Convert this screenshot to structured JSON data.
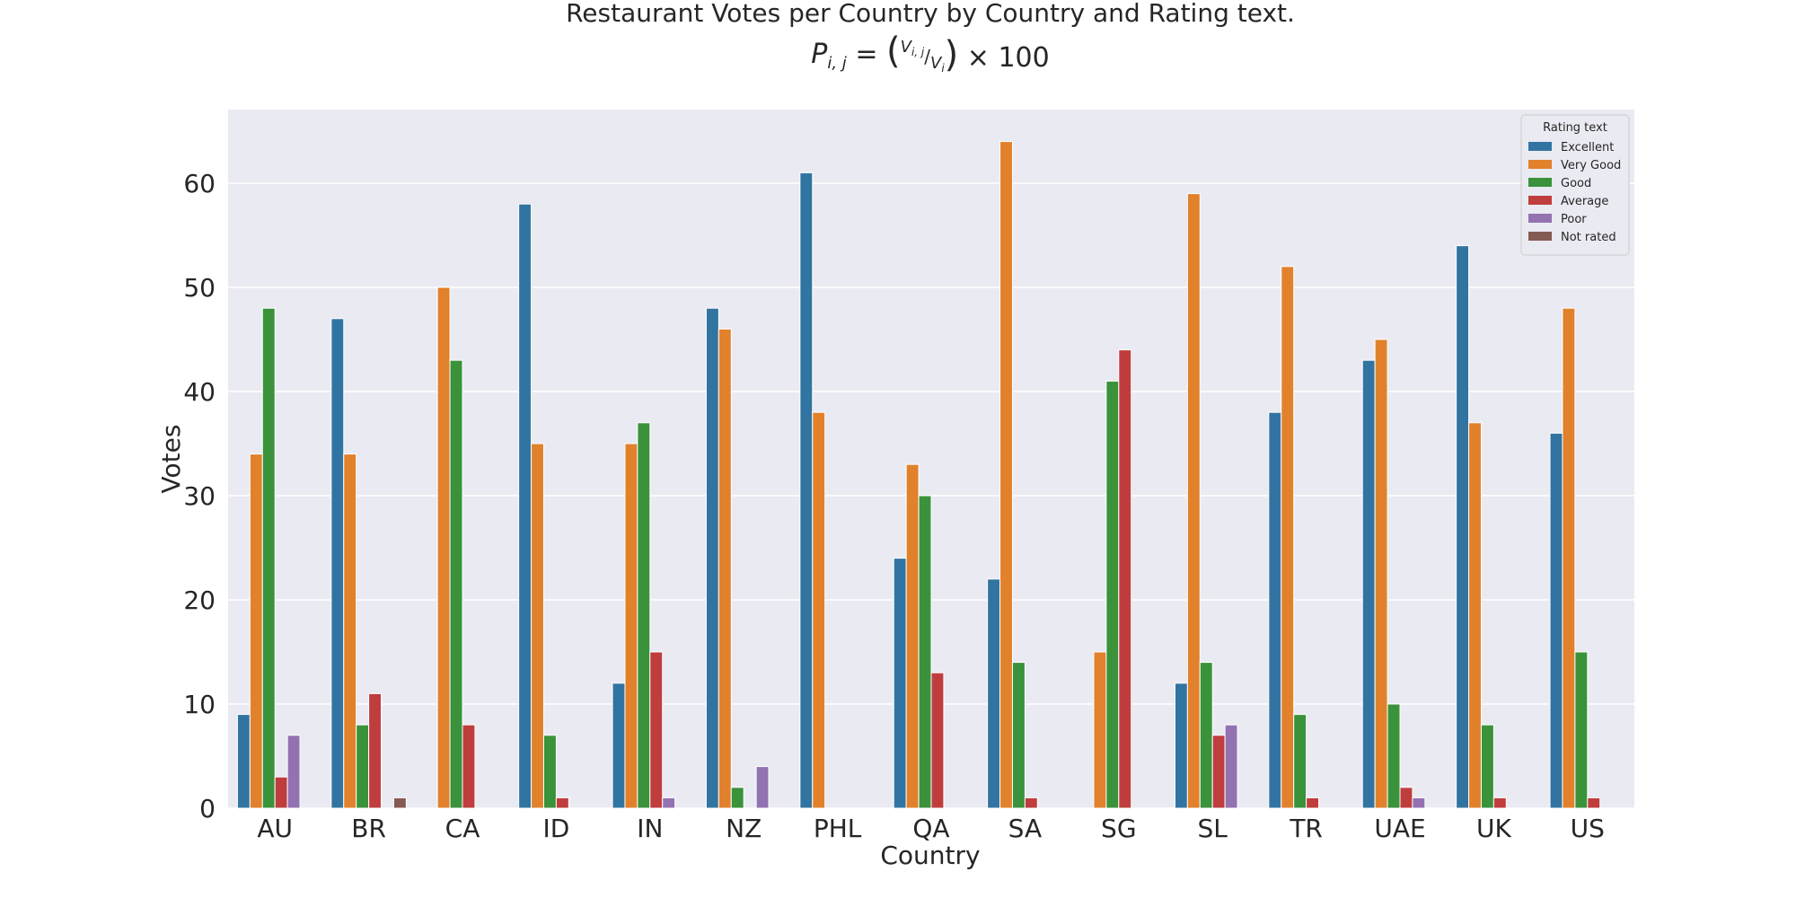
{
  "chart_data": {
    "type": "bar",
    "title": "Restaurant Votes per Country by Country and Rating text.",
    "formula": {
      "lhs_base": "P",
      "lhs_sub": "i, j",
      "eq": "=",
      "open": "(",
      "num_base": "V",
      "num_sub": "i, j",
      "den_base": "V",
      "den_sub": "i",
      "close": ")",
      "times": "× 100"
    },
    "xlabel": "Country",
    "ylabel": "Votes",
    "ylim": [
      0,
      67
    ],
    "yticks": [
      0,
      10,
      20,
      30,
      40,
      50,
      60
    ],
    "grid": true,
    "legend_title": "Rating text",
    "legend_position": "top-right",
    "categories": [
      "AU",
      "BR",
      "CA",
      "ID",
      "IN",
      "NZ",
      "PHL",
      "QA",
      "SA",
      "SG",
      "SL",
      "TR",
      "UAE",
      "UK",
      "US"
    ],
    "series": [
      {
        "name": "Excellent",
        "color": "#3274a1",
        "values": [
          9,
          47,
          0,
          58,
          12,
          48,
          61,
          24,
          22,
          0,
          12,
          38,
          43,
          54,
          36
        ]
      },
      {
        "name": "Very Good",
        "color": "#e1812c",
        "values": [
          34,
          34,
          50,
          35,
          35,
          46,
          38,
          33,
          64,
          15,
          59,
          52,
          45,
          37,
          48
        ]
      },
      {
        "name": "Good",
        "color": "#3a923a",
        "values": [
          48,
          8,
          43,
          7,
          37,
          2,
          0,
          30,
          14,
          41,
          14,
          9,
          10,
          8,
          15
        ]
      },
      {
        "name": "Average",
        "color": "#c03d3e",
        "values": [
          3,
          11,
          8,
          1,
          15,
          0,
          0,
          13,
          1,
          44,
          7,
          1,
          2,
          1,
          1
        ]
      },
      {
        "name": "Poor",
        "color": "#9372b2",
        "values": [
          7,
          0,
          0,
          0,
          1,
          4,
          0,
          0,
          0,
          0,
          8,
          0,
          1,
          0,
          0
        ]
      },
      {
        "name": "Not rated",
        "color": "#845b53",
        "values": [
          0,
          1,
          0,
          0,
          0,
          0,
          0,
          0,
          0,
          0,
          0,
          0,
          0,
          0,
          0
        ]
      }
    ],
    "plot_background": "#eaeaf2",
    "grid_color": "#ffffff"
  }
}
